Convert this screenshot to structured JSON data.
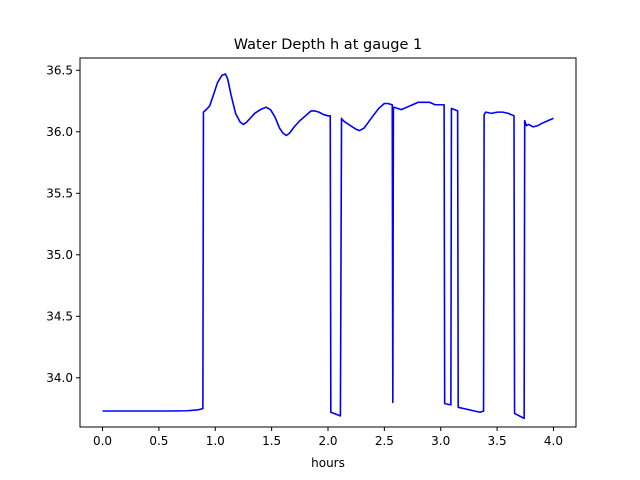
{
  "chart_data": {
    "type": "line",
    "title": "Water Depth h at gauge 1",
    "xlabel": "hours",
    "ylabel": "",
    "xlim": [
      -0.2,
      4.2
    ],
    "ylim": [
      33.6,
      36.6
    ],
    "xticks": [
      0.0,
      0.5,
      1.0,
      1.5,
      2.0,
      2.5,
      3.0,
      3.5,
      4.0
    ],
    "xtick_labels": [
      "0.0",
      "0.5",
      "1.0",
      "1.5",
      "2.0",
      "2.5",
      "3.0",
      "3.5",
      "4.0"
    ],
    "yticks": [
      34.0,
      34.5,
      35.0,
      35.5,
      36.0,
      36.5
    ],
    "ytick_labels": [
      "34.0",
      "34.5",
      "35.0",
      "35.5",
      "36.0",
      "36.5"
    ],
    "grid": false,
    "series": [
      {
        "color": "#0000ff",
        "x": [
          0.0,
          0.6,
          0.75,
          0.85,
          0.89,
          0.895,
          0.92,
          0.95,
          0.98,
          1.02,
          1.06,
          1.09,
          1.11,
          1.14,
          1.18,
          1.22,
          1.25,
          1.28,
          1.31,
          1.35,
          1.4,
          1.45,
          1.49,
          1.53,
          1.57,
          1.6,
          1.63,
          1.66,
          1.7,
          1.75,
          1.8,
          1.85,
          1.88,
          1.92,
          1.96,
          2.0,
          2.02,
          2.025,
          2.11,
          2.12,
          2.125,
          2.15,
          2.2,
          2.25,
          2.28,
          2.32,
          2.36,
          2.4,
          2.45,
          2.5,
          2.53,
          2.57,
          2.575,
          2.58,
          2.585,
          2.65,
          2.7,
          2.75,
          2.8,
          2.85,
          2.9,
          2.95,
          3.0,
          3.03,
          3.035,
          3.09,
          3.095,
          3.15,
          3.155,
          3.3,
          3.35,
          3.38,
          3.385,
          3.4,
          3.45,
          3.5,
          3.55,
          3.6,
          3.65,
          3.655,
          3.74,
          3.745,
          3.76,
          3.78,
          3.82,
          3.86,
          3.9,
          3.95,
          4.0
        ],
        "y": [
          33.73,
          33.73,
          33.732,
          33.74,
          33.75,
          36.16,
          36.18,
          36.21,
          36.29,
          36.4,
          36.46,
          36.47,
          36.43,
          36.3,
          36.15,
          36.08,
          36.06,
          36.08,
          36.11,
          36.15,
          36.18,
          36.2,
          36.18,
          36.12,
          36.03,
          35.99,
          35.97,
          35.99,
          36.04,
          36.09,
          36.13,
          36.17,
          36.17,
          36.16,
          36.14,
          36.13,
          36.13,
          33.72,
          33.69,
          36.11,
          36.1,
          36.08,
          36.05,
          36.02,
          36.01,
          36.03,
          36.08,
          36.13,
          36.19,
          36.23,
          36.23,
          36.22,
          33.8,
          36.19,
          36.2,
          36.18,
          36.2,
          36.22,
          36.24,
          36.24,
          36.24,
          36.22,
          36.22,
          36.22,
          33.79,
          33.78,
          36.19,
          36.17,
          33.76,
          33.73,
          33.72,
          33.73,
          36.14,
          36.16,
          36.15,
          36.16,
          36.16,
          36.15,
          36.13,
          33.71,
          33.67,
          36.09,
          36.05,
          36.06,
          36.04,
          36.05,
          36.07,
          36.09,
          36.11
        ]
      }
    ]
  }
}
